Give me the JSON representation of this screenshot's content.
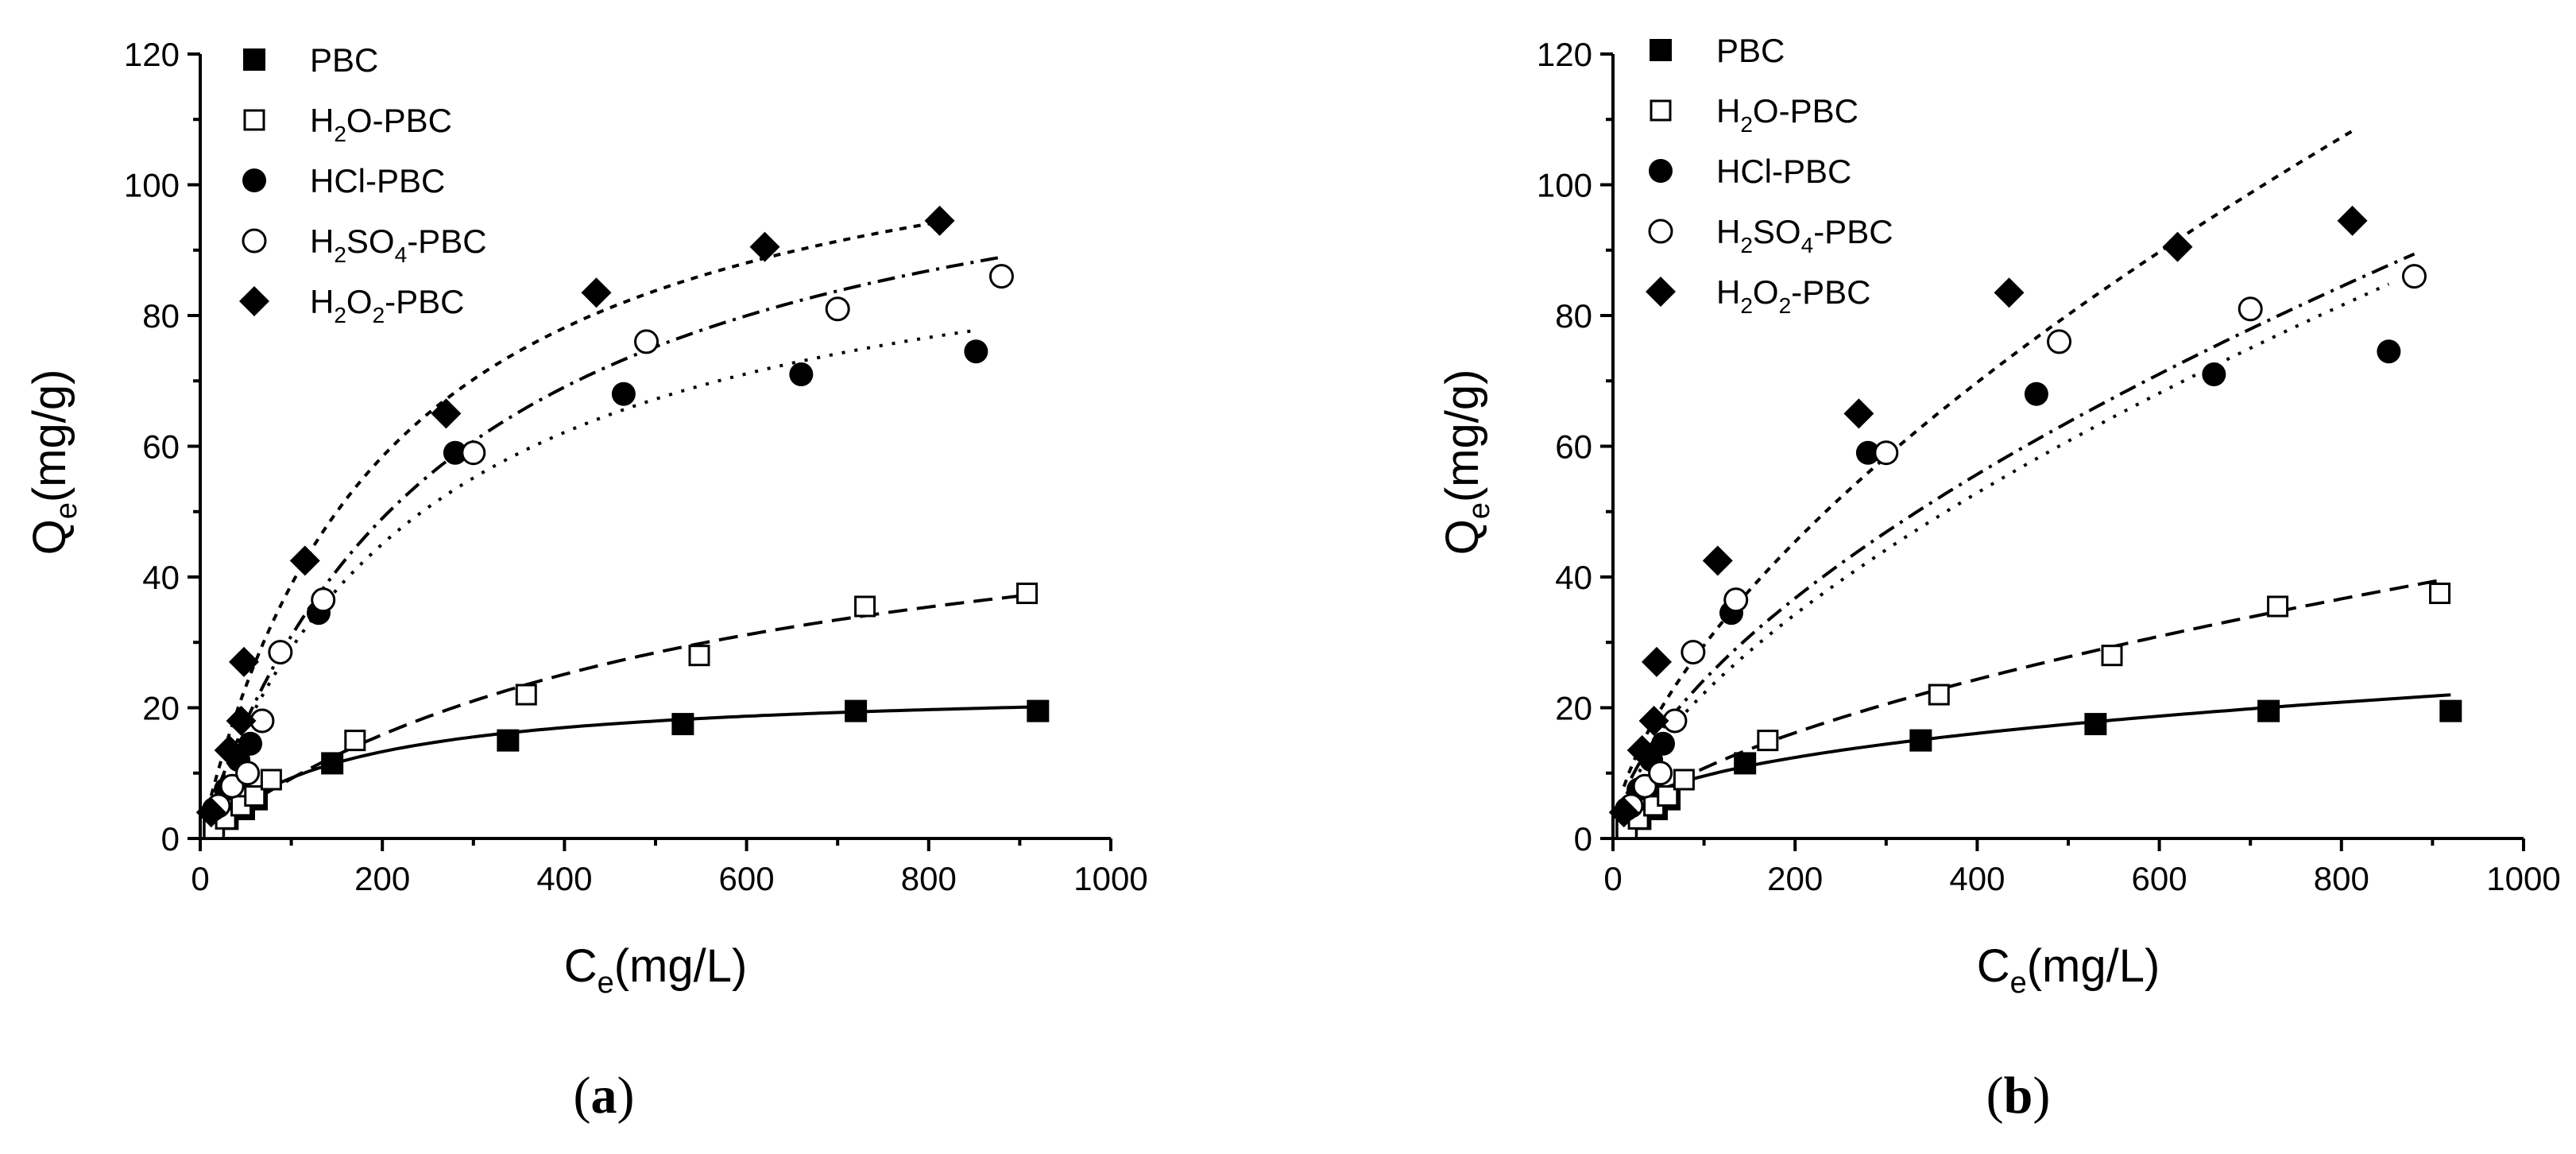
{
  "chart_data": [
    {
      "type": "scatter",
      "panel_label": "a",
      "xlabel": "C",
      "xlabel_sub": "e",
      "xlabel_unit": "(mg/L)",
      "ylabel": "Q",
      "ylabel_sub": "e",
      "ylabel_unit": "(mg/g)",
      "xlim": [
        0,
        1000
      ],
      "ylim": [
        0,
        120
      ],
      "xticks": [
        "0",
        "200",
        "400",
        "600",
        "800",
        "1000"
      ],
      "yticks": [
        "0",
        "20",
        "40",
        "60",
        "80",
        "100",
        "120"
      ],
      "legend_position": "top-left",
      "series": [
        {
          "name": "PBC",
          "legend_main": "PBC",
          "legend_sub": "",
          "legend_rest": "",
          "marker": "square-filled",
          "line_style": "solid",
          "x": [
            15,
            30,
            48,
            62,
            145,
            338,
            530,
            720,
            920
          ],
          "y": [
            2,
            3,
            4.5,
            6,
            11.5,
            15,
            17.5,
            19.5,
            19.5
          ],
          "fit": {
            "model": "langmuir",
            "qmax": 23.5,
            "k": 0.0065
          }
        },
        {
          "name": "H2O-PBC",
          "legend_main": "H",
          "legend_sub": "2",
          "legend_rest": "O-PBC",
          "marker": "square-open",
          "line_style": "dashed",
          "x": [
            15,
            28,
            45,
            60,
            78,
            170,
            358,
            548,
            730,
            908
          ],
          "y": [
            1.5,
            3,
            5,
            6.5,
            9,
            15,
            22,
            28,
            35.5,
            37.5
          ],
          "fit": {
            "model": "langmuir",
            "qmax": 60,
            "k": 0.0018
          }
        },
        {
          "name": "HCl-PBC",
          "legend_main": "HCl-PBC",
          "legend_sub": "",
          "legend_rest": "",
          "marker": "circle-filled",
          "line_style": "dotted",
          "x": [
            15,
            28,
            42,
            55,
            130,
            280,
            465,
            660,
            852
          ],
          "y": [
            4.5,
            7.5,
            12,
            14.5,
            34.5,
            59,
            68,
            71,
            74.5
          ],
          "fit": {
            "model": "langmuir",
            "qmax": 100,
            "k": 0.0041
          }
        },
        {
          "name": "H2SO4-PBC",
          "legend_main": "H",
          "legend_sub": "2",
          "legend_rest": "SO",
          "legend_sub2": "4",
          "legend_rest2": "-PBC",
          "marker": "circle-open",
          "line_style": "dash-dot",
          "x": [
            20,
            35,
            52,
            68,
            88,
            135,
            300,
            490,
            700,
            880
          ],
          "y": [
            5,
            8,
            10,
            18,
            28.5,
            36.5,
            59,
            76,
            81,
            86
          ],
          "fit": {
            "model": "langmuir",
            "qmax": 117,
            "k": 0.0036
          }
        },
        {
          "name": "H2O2-PBC",
          "legend_main": "H",
          "legend_sub": "2",
          "legend_rest": "O",
          "legend_sub2": "2",
          "legend_rest2": "-PBC",
          "marker": "diamond-filled",
          "line_style": "short-dash",
          "x": [
            12,
            32,
            45,
            48,
            115,
            270,
            435,
            620,
            812
          ],
          "y": [
            4,
            13.5,
            18,
            27,
            42.5,
            65,
            83.5,
            90.5,
            94.5
          ],
          "fit": {
            "model": "langmuir",
            "qmax": 118,
            "k": 0.0049
          }
        }
      ]
    },
    {
      "type": "scatter",
      "panel_label": "b",
      "xlabel": "C",
      "xlabel_sub": "e",
      "xlabel_unit": "(mg/L)",
      "ylabel": "Q",
      "ylabel_sub": "e",
      "ylabel_unit": "(mg/g)",
      "xlim": [
        0,
        1000
      ],
      "ylim": [
        0,
        120
      ],
      "xticks": [
        "0",
        "200",
        "400",
        "600",
        "800",
        "1000"
      ],
      "yticks": [
        "0",
        "20",
        "40",
        "60",
        "80",
        "100",
        "120"
      ],
      "legend_position": "top-left",
      "series": [
        {
          "name": "PBC",
          "legend_main": "PBC",
          "legend_sub": "",
          "legend_rest": "",
          "marker": "square-filled",
          "line_style": "solid",
          "x": [
            15,
            30,
            48,
            62,
            145,
            338,
            530,
            720,
            920
          ],
          "y": [
            2,
            3,
            4.5,
            6,
            11.5,
            15,
            17.5,
            19.5,
            19.5
          ],
          "fit": {
            "model": "freundlich",
            "kf": 1.7,
            "inv_n": 0.375
          }
        },
        {
          "name": "H2O-PBC",
          "legend_main": "H",
          "legend_sub": "2",
          "legend_rest": "O-PBC",
          "marker": "square-open",
          "line_style": "dashed",
          "x": [
            15,
            28,
            45,
            60,
            78,
            170,
            358,
            548,
            730,
            908
          ],
          "y": [
            1.5,
            3,
            5,
            6.5,
            9,
            15,
            22,
            28,
            35.5,
            37.5
          ],
          "fit": {
            "model": "freundlich",
            "kf": 0.71,
            "inv_n": 0.59
          }
        },
        {
          "name": "HCl-PBC",
          "legend_main": "HCl-PBC",
          "legend_sub": "",
          "legend_rest": "",
          "marker": "circle-filled",
          "line_style": "dotted",
          "x": [
            15,
            28,
            42,
            55,
            130,
            280,
            465,
            660,
            852
          ],
          "y": [
            4.5,
            7.5,
            12,
            14.5,
            34.5,
            59,
            68,
            71,
            74.5
          ],
          "fit": {
            "model": "freundlich",
            "kf": 1.25,
            "inv_n": 0.625
          }
        },
        {
          "name": "H2SO4-PBC",
          "legend_main": "H",
          "legend_sub": "2",
          "legend_rest": "SO",
          "legend_sub2": "4",
          "legend_rest2": "-PBC",
          "marker": "circle-open",
          "line_style": "dash-dot",
          "x": [
            20,
            35,
            52,
            68,
            88,
            135,
            300,
            490,
            700,
            880
          ],
          "y": [
            5,
            8,
            10,
            18,
            28.5,
            36.5,
            59,
            76,
            81,
            86
          ],
          "fit": {
            "model": "freundlich",
            "kf": 1.53,
            "inv_n": 0.6
          }
        },
        {
          "name": "H2O2-PBC",
          "legend_main": "H",
          "legend_sub": "2",
          "legend_rest": "O",
          "legend_sub2": "2",
          "legend_rest2": "-PBC",
          "marker": "diamond-filled",
          "line_style": "short-dash",
          "x": [
            12,
            32,
            45,
            48,
            115,
            270,
            435,
            620,
            812
          ],
          "y": [
            4,
            13.5,
            18,
            27,
            42.5,
            65,
            83.5,
            90.5,
            94.5
          ],
          "fit": {
            "model": "freundlich",
            "kf": 1.7,
            "inv_n": 0.62
          }
        }
      ]
    }
  ]
}
